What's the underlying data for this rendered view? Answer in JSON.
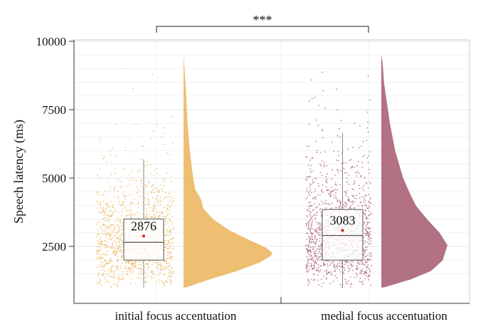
{
  "chart_data": {
    "type": "raincloud",
    "ylabel": "Speech latency (ms)",
    "xlabel": "",
    "ylim": [
      1400,
      10000
    ],
    "y_ticks": [
      2500,
      5000,
      7500,
      10000
    ],
    "y_tick_labels": [
      "2500",
      "5000",
      "7500",
      "10000"
    ],
    "categories": [
      "initial focus accentuation",
      "medial focus accentuation"
    ],
    "significance": {
      "label": "***",
      "between": [
        0,
        1
      ]
    },
    "groups": [
      {
        "category": "initial focus accentuation",
        "color": "#ebb45a",
        "mean": 2876,
        "mean_label": "2876",
        "median": 2650,
        "q1": 2000,
        "q3": 3500,
        "whisker_low": 1000,
        "whisker_high": 5700,
        "density_max_value": 2250,
        "density": [
          [
            1000,
            0.03
          ],
          [
            1300,
            0.3
          ],
          [
            1600,
            0.6
          ],
          [
            1900,
            0.85
          ],
          [
            2150,
            0.98
          ],
          [
            2250,
            1.0
          ],
          [
            2450,
            0.93
          ],
          [
            2750,
            0.73
          ],
          [
            3100,
            0.51
          ],
          [
            3500,
            0.33
          ],
          [
            3900,
            0.22
          ],
          [
            4200,
            0.2
          ],
          [
            4600,
            0.13
          ],
          [
            5200,
            0.1
          ],
          [
            6000,
            0.07
          ],
          [
            7000,
            0.045
          ],
          [
            8000,
            0.03
          ],
          [
            8800,
            0.015
          ],
          [
            9500,
            0.0
          ]
        ]
      },
      {
        "category": "medial focus accentuation",
        "color": "#a5596f",
        "mean": 3083,
        "mean_label": "3083",
        "median": 2900,
        "q1": 2000,
        "q3": 3850,
        "whisker_low": 1000,
        "whisker_high": 6650,
        "density_max_value": 2550,
        "density": [
          [
            1000,
            0.04
          ],
          [
            1300,
            0.45
          ],
          [
            1600,
            0.75
          ],
          [
            2000,
            0.93
          ],
          [
            2550,
            1.0
          ],
          [
            3000,
            0.88
          ],
          [
            3500,
            0.69
          ],
          [
            4000,
            0.52
          ],
          [
            4500,
            0.42
          ],
          [
            5000,
            0.33
          ],
          [
            5500,
            0.27
          ],
          [
            6000,
            0.21
          ],
          [
            7000,
            0.13
          ],
          [
            8000,
            0.07
          ],
          [
            8500,
            0.04
          ],
          [
            9200,
            0.02
          ],
          [
            9500,
            0.0
          ]
        ]
      }
    ]
  }
}
